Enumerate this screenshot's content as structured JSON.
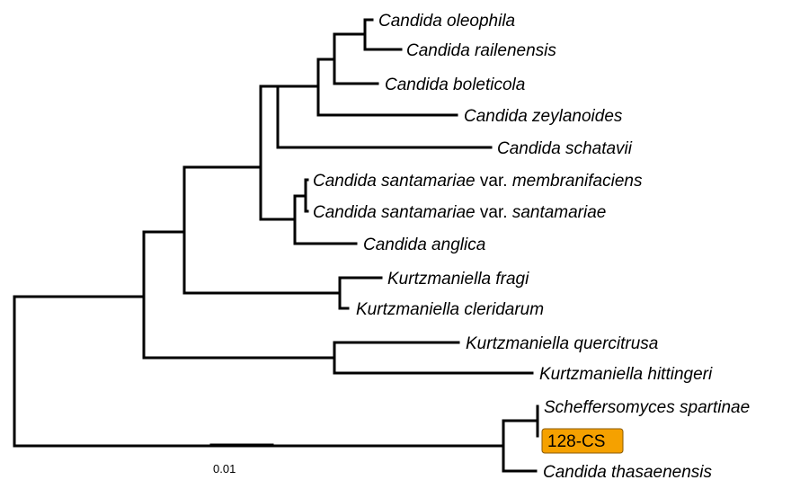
{
  "highlight_color": "#f5a100",
  "taxa": [
    {
      "id": "c-oleophila",
      "parts": [
        {
          "text": "Candida oleophila",
          "italic": true
        }
      ]
    },
    {
      "id": "c-railenensis",
      "parts": [
        {
          "text": "Candida railenensis",
          "italic": true
        }
      ]
    },
    {
      "id": "c-boleticola",
      "parts": [
        {
          "text": "Candida boleticola",
          "italic": true
        }
      ]
    },
    {
      "id": "c-zeylanoides",
      "parts": [
        {
          "text": "Candida zeylanoides",
          "italic": true
        }
      ]
    },
    {
      "id": "c-schatavii",
      "parts": [
        {
          "text": "Candida schatavii",
          "italic": true
        }
      ]
    },
    {
      "id": "c-santamariae-membranifaciens",
      "parts": [
        {
          "text": "Candida santamariae",
          "italic": true
        },
        {
          "text": " var. ",
          "italic": false
        },
        {
          "text": "membranifaciens",
          "italic": true
        }
      ]
    },
    {
      "id": "c-santamariae-santamariae",
      "parts": [
        {
          "text": "Candida santamariae",
          "italic": true
        },
        {
          "text": " var. ",
          "italic": false
        },
        {
          "text": "santamariae",
          "italic": true
        }
      ]
    },
    {
      "id": "c-anglica",
      "parts": [
        {
          "text": "Candida anglica",
          "italic": true
        }
      ]
    },
    {
      "id": "k-fragi",
      "parts": [
        {
          "text": "Kurtzmaniella fragi",
          "italic": true
        }
      ]
    },
    {
      "id": "k-cleridarum",
      "parts": [
        {
          "text": "Kurtzmaniella cleridarum",
          "italic": true
        }
      ]
    },
    {
      "id": "k-quercitrusa",
      "parts": [
        {
          "text": "Kurtzmaniella quercitrusa",
          "italic": true
        }
      ]
    },
    {
      "id": "k-hittingeri",
      "parts": [
        {
          "text": "Kurtzmaniella hittingeri",
          "italic": true
        }
      ]
    },
    {
      "id": "s-spartinae",
      "parts": [
        {
          "text": "Scheffersomyces spartinae",
          "italic": true
        }
      ]
    },
    {
      "id": "isolate-128-cs",
      "parts": [
        {
          "text": "128-CS",
          "italic": false
        }
      ],
      "highlight": true
    },
    {
      "id": "c-thasaenensis",
      "parts": [
        {
          "text": "Candida thasaenensis",
          "italic": true
        }
      ]
    }
  ],
  "scale_bar": {
    "label": "0.01"
  }
}
